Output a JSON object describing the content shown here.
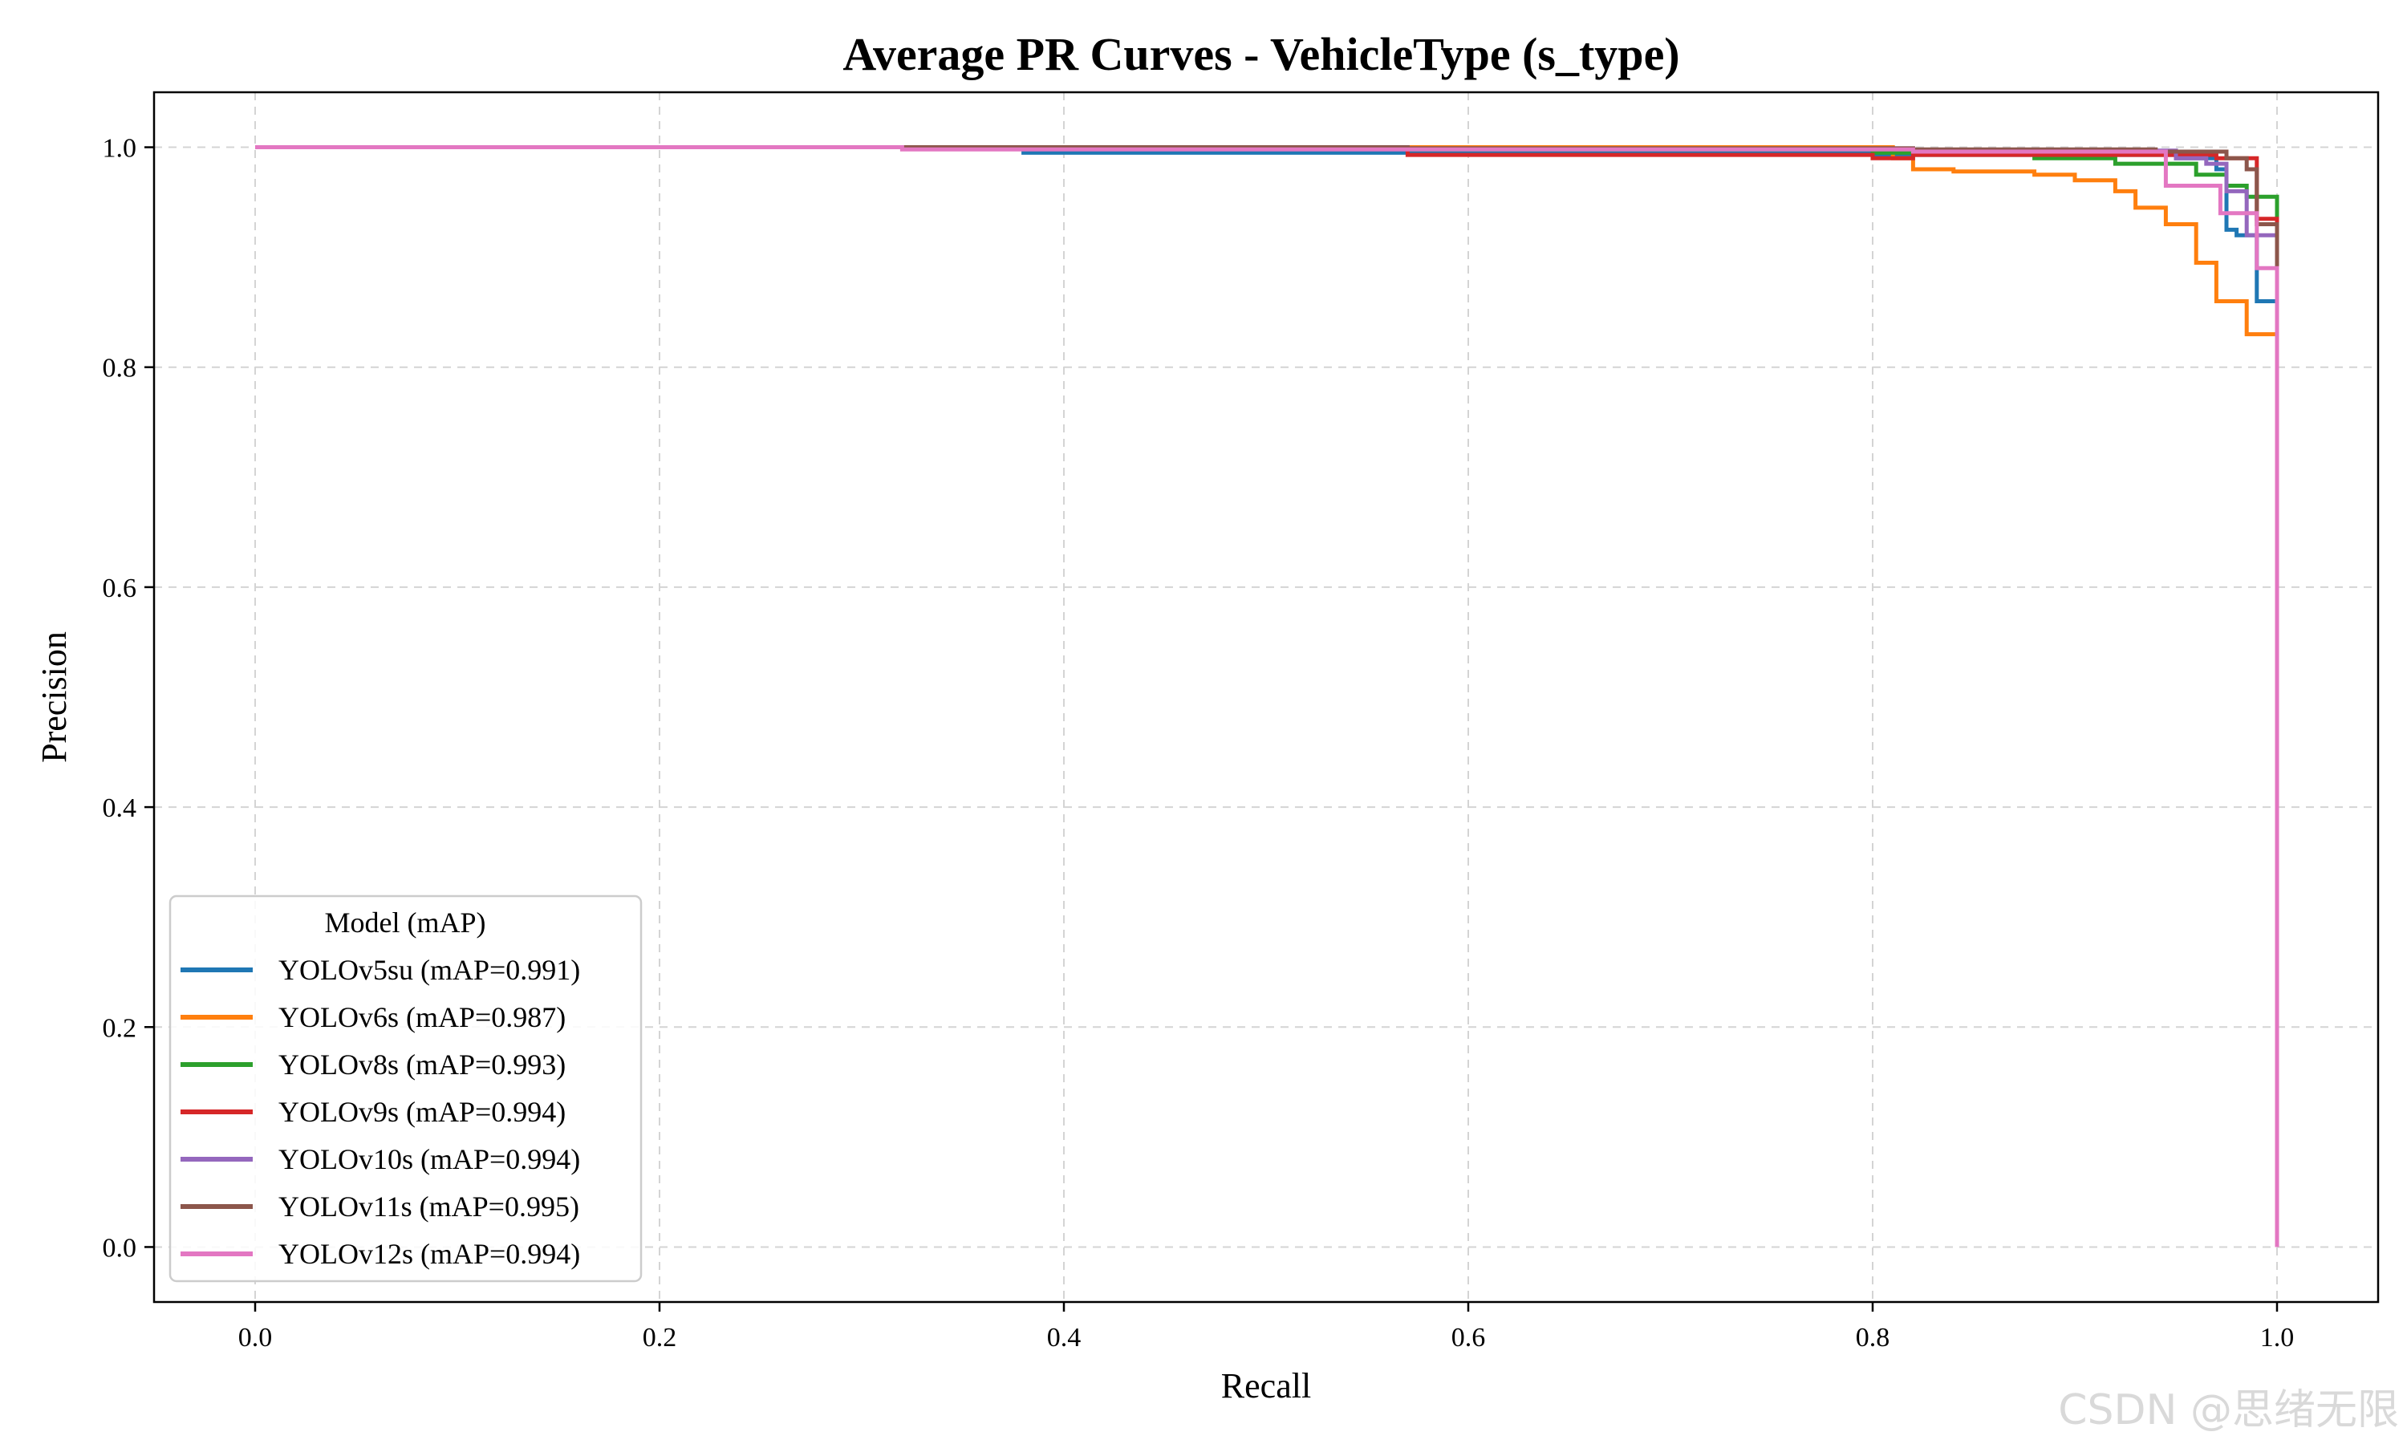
{
  "chart_data": {
    "type": "line",
    "title": "Average PR Curves - VehicleType (s_type)",
    "xlabel": "Recall",
    "ylabel": "Precision",
    "xlim": [
      -0.05,
      1.05
    ],
    "ylim": [
      -0.05,
      1.05
    ],
    "xticks": [
      "0.0",
      "0.2",
      "0.4",
      "0.6",
      "0.8",
      "1.0"
    ],
    "yticks": [
      "0.0",
      "0.2",
      "0.4",
      "0.6",
      "0.8",
      "1.0"
    ],
    "grid": true,
    "legend": {
      "title": "Model (mAP)",
      "placement": "lower-left"
    },
    "series": [
      {
        "name": "YOLOv5su (mAP=0.991)",
        "color": "#1f77b4",
        "x": [
          0,
          0.37,
          0.38,
          0.57,
          0.8,
          0.95,
          0.97,
          0.975,
          0.98,
          0.99,
          1.0,
          1.0
        ],
        "y": [
          1.0,
          1.0,
          0.995,
          0.995,
          0.993,
          0.99,
          0.98,
          0.925,
          0.92,
          0.86,
          0.84,
          0.0
        ]
      },
      {
        "name": "YOLOv6s (mAP=0.987)",
        "color": "#ff7f0e",
        "x": [
          0,
          0.81,
          0.82,
          0.84,
          0.88,
          0.9,
          0.92,
          0.93,
          0.945,
          0.96,
          0.97,
          0.985,
          1.0,
          1.0
        ],
        "y": [
          1.0,
          0.99,
          0.98,
          0.978,
          0.975,
          0.97,
          0.96,
          0.945,
          0.93,
          0.895,
          0.86,
          0.83,
          0.83,
          0.0
        ]
      },
      {
        "name": "YOLOv8s (mAP=0.993)",
        "color": "#2ca02c",
        "x": [
          0,
          0.57,
          0.8,
          0.88,
          0.92,
          0.96,
          0.975,
          0.985,
          1.0,
          1.0
        ],
        "y": [
          1.0,
          0.998,
          0.995,
          0.99,
          0.985,
          0.975,
          0.965,
          0.955,
          0.83,
          0.0
        ]
      },
      {
        "name": "YOLOv9s (mAP=0.994)",
        "color": "#d62728",
        "x": [
          0,
          0.57,
          0.8,
          0.82,
          0.92,
          0.97,
          0.99,
          0.99,
          1.0,
          1.0
        ],
        "y": [
          1.0,
          0.993,
          0.99,
          0.993,
          0.993,
          0.99,
          0.98,
          0.935,
          0.935,
          0.0
        ]
      },
      {
        "name": "YOLOv10s (mAP=0.994)",
        "color": "#9467bd",
        "x": [
          0,
          0.57,
          0.82,
          0.95,
          0.965,
          0.975,
          0.985,
          1.0,
          1.0
        ],
        "y": [
          1.0,
          0.999,
          0.997,
          0.99,
          0.985,
          0.96,
          0.92,
          0.78,
          0.0
        ]
      },
      {
        "name": "YOLOv11s (mAP=0.995)",
        "color": "#8c564b",
        "x": [
          0,
          0.32,
          0.57,
          0.82,
          0.94,
          0.975,
          0.985,
          0.99,
          1.0,
          1.0
        ],
        "y": [
          1.0,
          1.0,
          0.999,
          0.998,
          0.996,
          0.99,
          0.98,
          0.93,
          0.82,
          0.0
        ]
      },
      {
        "name": "YOLOv12s (mAP=0.994)",
        "color": "#e377c2",
        "x": [
          0,
          0.32,
          0.82,
          0.94,
          0.945,
          0.97,
          0.972,
          0.99,
          1.0,
          1.0
        ],
        "y": [
          1.0,
          0.998,
          0.996,
          0.996,
          0.965,
          0.965,
          0.94,
          0.89,
          0.8,
          0.0
        ]
      }
    ]
  },
  "watermark": "CSDN @思绪无限"
}
